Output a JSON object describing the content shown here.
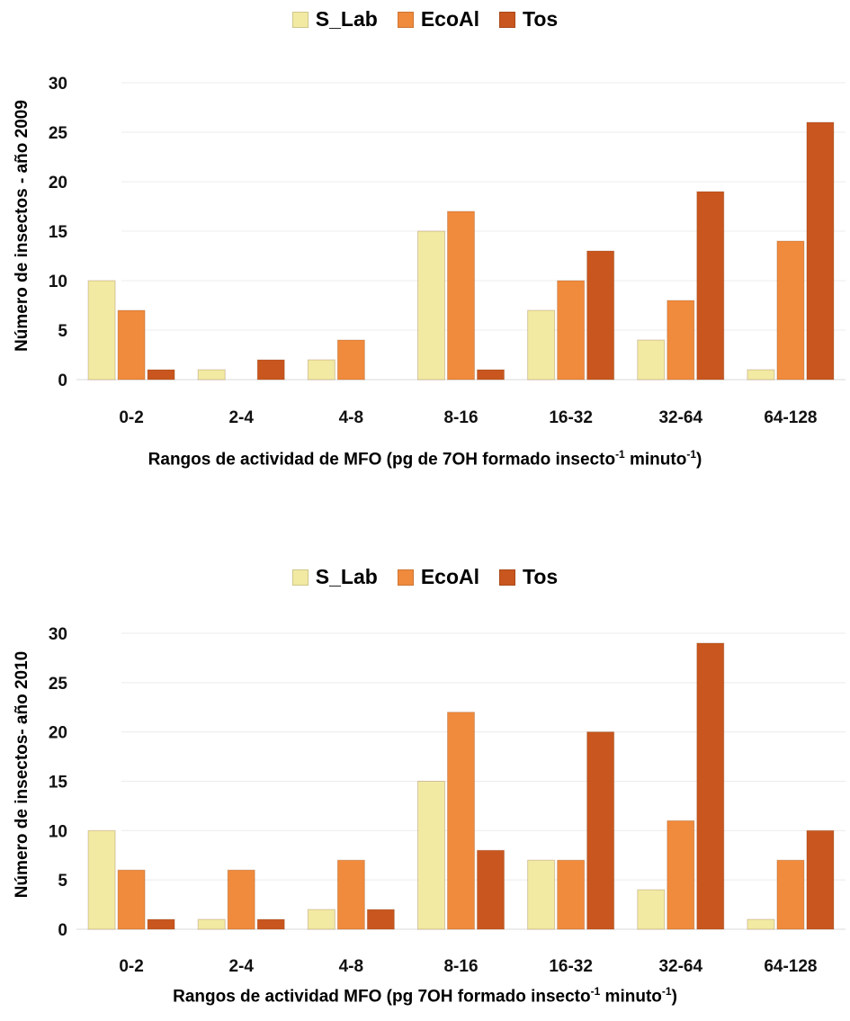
{
  "chart_data": [
    {
      "type": "bar",
      "categories": [
        "0-2",
        "2-4",
        "4-8",
        "8-16",
        "16-32",
        "32-64",
        "64-128"
      ],
      "series": [
        {
          "name": "S_Lab",
          "values": [
            10,
            1,
            2,
            15,
            7,
            4,
            1
          ]
        },
        {
          "name": "EcoAl",
          "values": [
            7,
            0,
            4,
            17,
            10,
            8,
            14
          ]
        },
        {
          "name": "Tos",
          "values": [
            1,
            2,
            0,
            1,
            13,
            19,
            26
          ]
        }
      ],
      "colors": [
        "#f2eaa3",
        "#f08a3c",
        "#c8561e"
      ],
      "ylabel": "Número de insectos - año 2009",
      "xlabel_parts": [
        "Rangos de actividad de MFO (pg de 7OH formado insecto",
        "-1",
        " minuto",
        "-1",
        ")"
      ],
      "ylim": [
        0,
        30
      ],
      "yticks": [
        "0",
        "5",
        "10",
        "15",
        "20",
        "25",
        "30"
      ],
      "legend_position": "top-center",
      "grid": true
    },
    {
      "type": "bar",
      "categories": [
        "0-2",
        "2-4",
        "4-8",
        "8-16",
        "16-32",
        "32-64",
        "64-128"
      ],
      "series": [
        {
          "name": "S_Lab",
          "values": [
            10,
            1,
            2,
            15,
            7,
            4,
            1
          ]
        },
        {
          "name": "EcoAl",
          "values": [
            6,
            6,
            7,
            22,
            7,
            11,
            7
          ]
        },
        {
          "name": "Tos",
          "values": [
            1,
            1,
            2,
            8,
            20,
            29,
            10
          ]
        }
      ],
      "colors": [
        "#f2eaa3",
        "#f08a3c",
        "#c8561e"
      ],
      "ylabel": "Número de insectos- año 2010",
      "xlabel_parts": [
        "Rangos de actividad MFO (pg 7OH formado insecto",
        "-1",
        " minuto",
        "-1",
        ")"
      ],
      "ylim": [
        0,
        30
      ],
      "yticks": [
        "0",
        "5",
        "10",
        "15",
        "20",
        "25",
        "30"
      ],
      "legend_position": "top-center",
      "grid": true
    }
  ]
}
